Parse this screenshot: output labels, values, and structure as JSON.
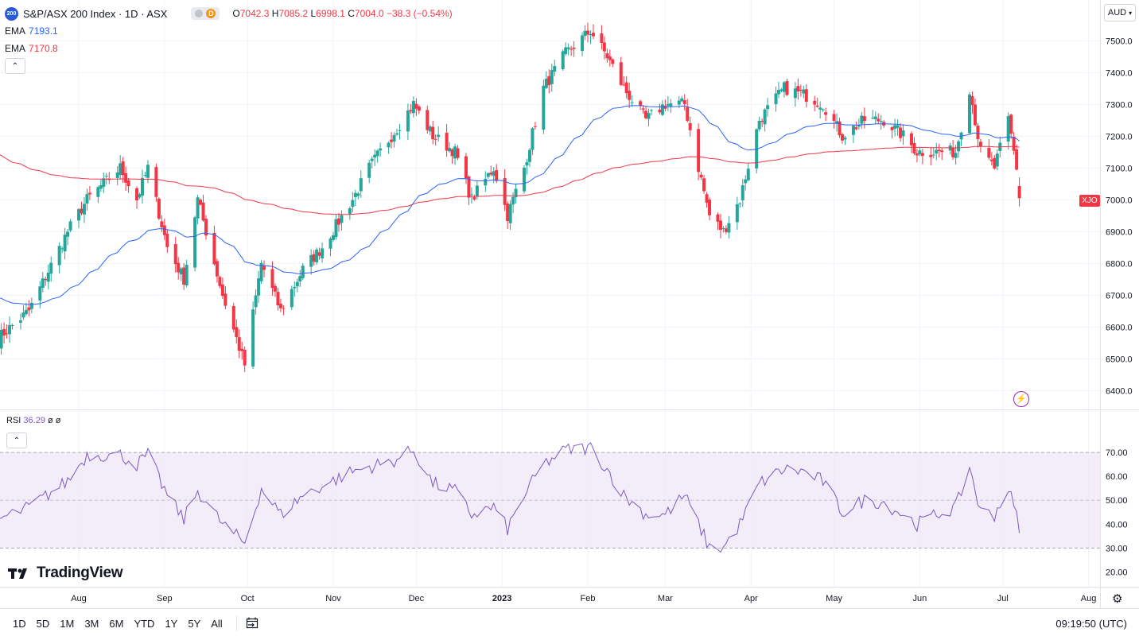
{
  "header": {
    "symbol_badge": "200",
    "title": "S&P/ASX 200 Index · 1D · ASX",
    "d_badge": "D",
    "ohlc": {
      "o_label": "O",
      "o": "7042.3",
      "h_label": "H",
      "h": "7085.2",
      "l_label": "L",
      "l": "6998.1",
      "c_label": "C",
      "c": "7004.0",
      "change": "−38.3 (−0.54%)"
    }
  },
  "indicators": [
    {
      "name": "EMA",
      "value": "7193.1",
      "color": "#2962ff"
    },
    {
      "name": "EMA",
      "value": "7170.8",
      "color": "#f23645"
    }
  ],
  "rsi_legend": {
    "name": "RSI",
    "value": "36.29",
    "extra1": "ø",
    "extra2": "ø"
  },
  "currency": "AUD",
  "last_price_label": "XJO",
  "logo": "TradingView",
  "ranges": [
    "1D",
    "5D",
    "1M",
    "3M",
    "6M",
    "YTD",
    "1Y",
    "5Y",
    "All"
  ],
  "clock": "09:19:50 (UTC)",
  "colors": {
    "up": "#26a69a",
    "down": "#f23645",
    "ema_fast": "#2962ff",
    "ema_slow": "#f23645",
    "rsi": "#7e57c2",
    "rsi_band": "#ede7f6"
  },
  "chart_data": {
    "type": "candlestick",
    "y_ticks": [
      6400,
      6500,
      6600,
      6700,
      6800,
      6900,
      7000,
      7100,
      7200,
      7300,
      7400,
      7500
    ],
    "y_tick_labels": [
      "6400.0",
      "6500.0",
      "6600.0",
      "6700.0",
      "6800.0",
      "6900.0",
      "7000.0",
      "7100.0",
      "7200.0",
      "7300.0",
      "7400.0",
      "7500.0"
    ],
    "x_labels": [
      "Aug",
      "Sep",
      "Oct",
      "Nov",
      "Dec",
      "2023",
      "Feb",
      "Mar",
      "Apr",
      "May",
      "Jun",
      "Jul",
      "Aug"
    ],
    "close_anchors": [
      {
        "date": "2022-07-01",
        "value": 6550
      },
      {
        "date": "2022-07-14",
        "value": 6650
      },
      {
        "date": "2022-07-28",
        "value": 6900
      },
      {
        "date": "2022-08-04",
        "value": 7000
      },
      {
        "date": "2022-08-16",
        "value": 7100
      },
      {
        "date": "2022-08-22",
        "value": 7000
      },
      {
        "date": "2022-08-26",
        "value": 7100
      },
      {
        "date": "2022-09-02",
        "value": 6850
      },
      {
        "date": "2022-09-08",
        "value": 6750
      },
      {
        "date": "2022-09-13",
        "value": 7000
      },
      {
        "date": "2022-09-22",
        "value": 6700
      },
      {
        "date": "2022-09-30",
        "value": 6480
      },
      {
        "date": "2022-10-06",
        "value": 6800
      },
      {
        "date": "2022-10-13",
        "value": 6650
      },
      {
        "date": "2022-10-21",
        "value": 6780
      },
      {
        "date": "2022-10-28",
        "value": 6850
      },
      {
        "date": "2022-11-08",
        "value": 7000
      },
      {
        "date": "2022-11-14",
        "value": 7100
      },
      {
        "date": "2022-11-22",
        "value": 7200
      },
      {
        "date": "2022-11-30",
        "value": 7300
      },
      {
        "date": "2022-12-07",
        "value": 7200
      },
      {
        "date": "2022-12-15",
        "value": 7150
      },
      {
        "date": "2022-12-21",
        "value": 7000
      },
      {
        "date": "2022-12-29",
        "value": 7100
      },
      {
        "date": "2023-01-03",
        "value": 6950
      },
      {
        "date": "2023-01-09",
        "value": 7100
      },
      {
        "date": "2023-01-16",
        "value": 7350
      },
      {
        "date": "2023-01-24",
        "value": 7460
      },
      {
        "date": "2023-02-02",
        "value": 7530
      },
      {
        "date": "2023-02-08",
        "value": 7450
      },
      {
        "date": "2023-02-14",
        "value": 7350
      },
      {
        "date": "2023-02-22",
        "value": 7250
      },
      {
        "date": "2023-03-01",
        "value": 7300
      },
      {
        "date": "2023-03-08",
        "value": 7300
      },
      {
        "date": "2023-03-13",
        "value": 7100
      },
      {
        "date": "2023-03-17",
        "value": 6950
      },
      {
        "date": "2023-03-22",
        "value": 6900
      },
      {
        "date": "2023-03-28",
        "value": 7000
      },
      {
        "date": "2023-04-04",
        "value": 7250
      },
      {
        "date": "2023-04-13",
        "value": 7350
      },
      {
        "date": "2023-04-20",
        "value": 7330
      },
      {
        "date": "2023-04-27",
        "value": 7300
      },
      {
        "date": "2023-05-04",
        "value": 7200
      },
      {
        "date": "2023-05-12",
        "value": 7250
      },
      {
        "date": "2023-05-19",
        "value": 7250
      },
      {
        "date": "2023-05-26",
        "value": 7200
      },
      {
        "date": "2023-05-31",
        "value": 7150
      },
      {
        "date": "2023-06-07",
        "value": 7150
      },
      {
        "date": "2023-06-14",
        "value": 7150
      },
      {
        "date": "2023-06-19",
        "value": 7350
      },
      {
        "date": "2023-06-23",
        "value": 7150
      },
      {
        "date": "2023-06-28",
        "value": 7100
      },
      {
        "date": "2023-07-03",
        "value": 7250
      },
      {
        "date": "2023-07-06",
        "value": 7100
      },
      {
        "date": "2023-07-07",
        "value": 7004
      }
    ],
    "rsi": {
      "y_ticks": [
        20,
        30,
        40,
        50,
        60,
        70
      ],
      "y_tick_labels": [
        "20.00",
        "30.00",
        "40.00",
        "50.00",
        "60.00",
        "70.00"
      ],
      "band": [
        30,
        70
      ],
      "anchors": [
        {
          "date": "2022-07-01",
          "value": 41
        },
        {
          "date": "2022-07-14",
          "value": 47
        },
        {
          "date": "2022-07-28",
          "value": 58
        },
        {
          "date": "2022-08-04",
          "value": 69
        },
        {
          "date": "2022-08-16",
          "value": 69
        },
        {
          "date": "2022-08-22",
          "value": 65
        },
        {
          "date": "2022-08-26",
          "value": 69
        },
        {
          "date": "2022-09-02",
          "value": 52
        },
        {
          "date": "2022-09-08",
          "value": 42
        },
        {
          "date": "2022-09-13",
          "value": 54
        },
        {
          "date": "2022-09-22",
          "value": 40
        },
        {
          "date": "2022-09-30",
          "value": 32
        },
        {
          "date": "2022-10-06",
          "value": 55
        },
        {
          "date": "2022-10-13",
          "value": 44
        },
        {
          "date": "2022-10-21",
          "value": 52
        },
        {
          "date": "2022-10-28",
          "value": 56
        },
        {
          "date": "2022-11-08",
          "value": 62
        },
        {
          "date": "2022-11-14",
          "value": 64
        },
        {
          "date": "2022-11-22",
          "value": 66
        },
        {
          "date": "2022-11-30",
          "value": 71
        },
        {
          "date": "2022-12-07",
          "value": 57
        },
        {
          "date": "2022-12-15",
          "value": 54
        },
        {
          "date": "2022-12-21",
          "value": 44
        },
        {
          "date": "2022-12-29",
          "value": 47
        },
        {
          "date": "2023-01-03",
          "value": 38
        },
        {
          "date": "2023-01-09",
          "value": 52
        },
        {
          "date": "2023-01-16",
          "value": 65
        },
        {
          "date": "2023-01-24",
          "value": 71
        },
        {
          "date": "2023-02-02",
          "value": 72
        },
        {
          "date": "2023-02-08",
          "value": 63
        },
        {
          "date": "2023-02-14",
          "value": 52
        },
        {
          "date": "2023-02-22",
          "value": 44
        },
        {
          "date": "2023-03-01",
          "value": 44
        },
        {
          "date": "2023-03-08",
          "value": 52
        },
        {
          "date": "2023-03-13",
          "value": 40
        },
        {
          "date": "2023-03-17",
          "value": 30
        },
        {
          "date": "2023-03-22",
          "value": 30
        },
        {
          "date": "2023-03-28",
          "value": 40
        },
        {
          "date": "2023-04-04",
          "value": 57
        },
        {
          "date": "2023-04-13",
          "value": 63
        },
        {
          "date": "2023-04-20",
          "value": 62
        },
        {
          "date": "2023-04-27",
          "value": 58
        },
        {
          "date": "2023-05-04",
          "value": 45
        },
        {
          "date": "2023-05-12",
          "value": 50
        },
        {
          "date": "2023-05-19",
          "value": 49
        },
        {
          "date": "2023-05-26",
          "value": 44
        },
        {
          "date": "2023-05-31",
          "value": 40
        },
        {
          "date": "2023-06-07",
          "value": 44
        },
        {
          "date": "2023-06-14",
          "value": 47
        },
        {
          "date": "2023-06-19",
          "value": 64
        },
        {
          "date": "2023-06-23",
          "value": 45
        },
        {
          "date": "2023-06-28",
          "value": 44
        },
        {
          "date": "2023-07-03",
          "value": 55
        },
        {
          "date": "2023-07-06",
          "value": 43
        },
        {
          "date": "2023-07-07",
          "value": 36.29
        }
      ]
    }
  }
}
